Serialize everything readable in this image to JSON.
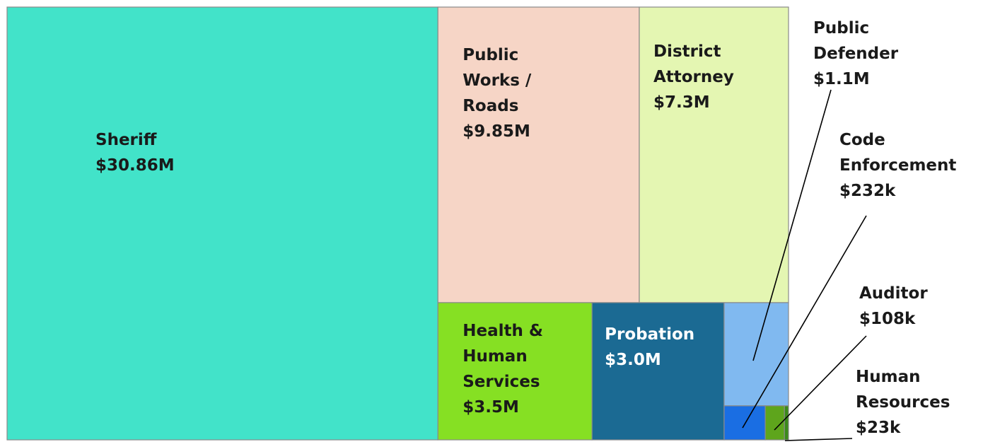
{
  "chart_data": {
    "type": "treemap",
    "categories": [
      "Sheriff",
      "Public Works / Roads",
      "District Attorney",
      "Health & Human Services",
      "Probation",
      "Public Defender",
      "Code Enforcement",
      "Auditor",
      "Human Resources"
    ],
    "values": [
      30.86,
      9.85,
      7.3,
      3.5,
      3.0,
      1.1,
      0.232,
      0.108,
      0.023
    ],
    "value_labels": [
      "$30.86M",
      "$9.85M",
      "$7.3M",
      "$3.5M",
      "$3.0M",
      "$1.1M",
      "$232k",
      "$108k",
      "$23k"
    ],
    "colors": [
      "#42e3c9",
      "#f6d5c6",
      "#e4f6b2",
      "#86e023",
      "#1b6a93",
      "#80b9f0",
      "#1a6ee3",
      "#5ea51c",
      "#3c8a1a"
    ]
  }
}
